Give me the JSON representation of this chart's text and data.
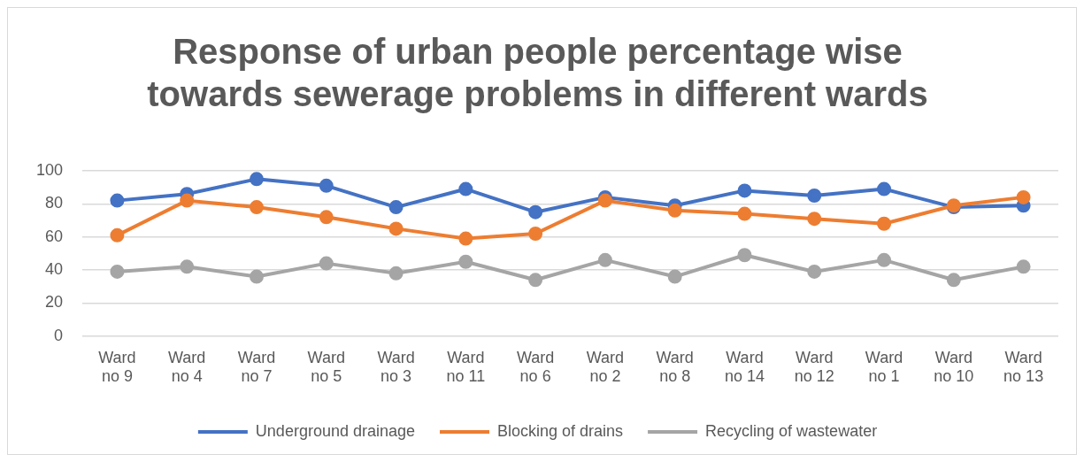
{
  "chart_data": {
    "type": "line",
    "title": "Response of urban people percentage wise towards sewerage problems in different wards",
    "categories": [
      "Ward no 9",
      "Ward no 4",
      "Ward no 7",
      "Ward no 5",
      "Ward no 3",
      "Ward no 11",
      "Ward no 6",
      "Ward no 2",
      "Ward no 8",
      "Ward no 14",
      "Ward no 12",
      "Ward no 1",
      "Ward no 10",
      "Ward no 13"
    ],
    "series": [
      {
        "name": "Underground drainage",
        "color": "#4472c4",
        "values": [
          82,
          86,
          95,
          91,
          78,
          89,
          75,
          84,
          79,
          88,
          85,
          89,
          78,
          79
        ]
      },
      {
        "name": "Blocking of drains",
        "color": "#ed7d31",
        "values": [
          61,
          82,
          78,
          72,
          65,
          59,
          62,
          82,
          76,
          74,
          71,
          68,
          79,
          84
        ]
      },
      {
        "name": "Recycling of wastewater",
        "color": "#a5a5a5",
        "values": [
          39,
          42,
          36,
          44,
          38,
          45,
          34,
          46,
          36,
          49,
          39,
          46,
          34,
          42
        ]
      }
    ],
    "ylim": [
      0,
      100
    ],
    "yticks": [
      0,
      20,
      40,
      60,
      80,
      100
    ],
    "grid": "y",
    "legend": "bottom",
    "marker": "circle",
    "line_style": "solid"
  }
}
